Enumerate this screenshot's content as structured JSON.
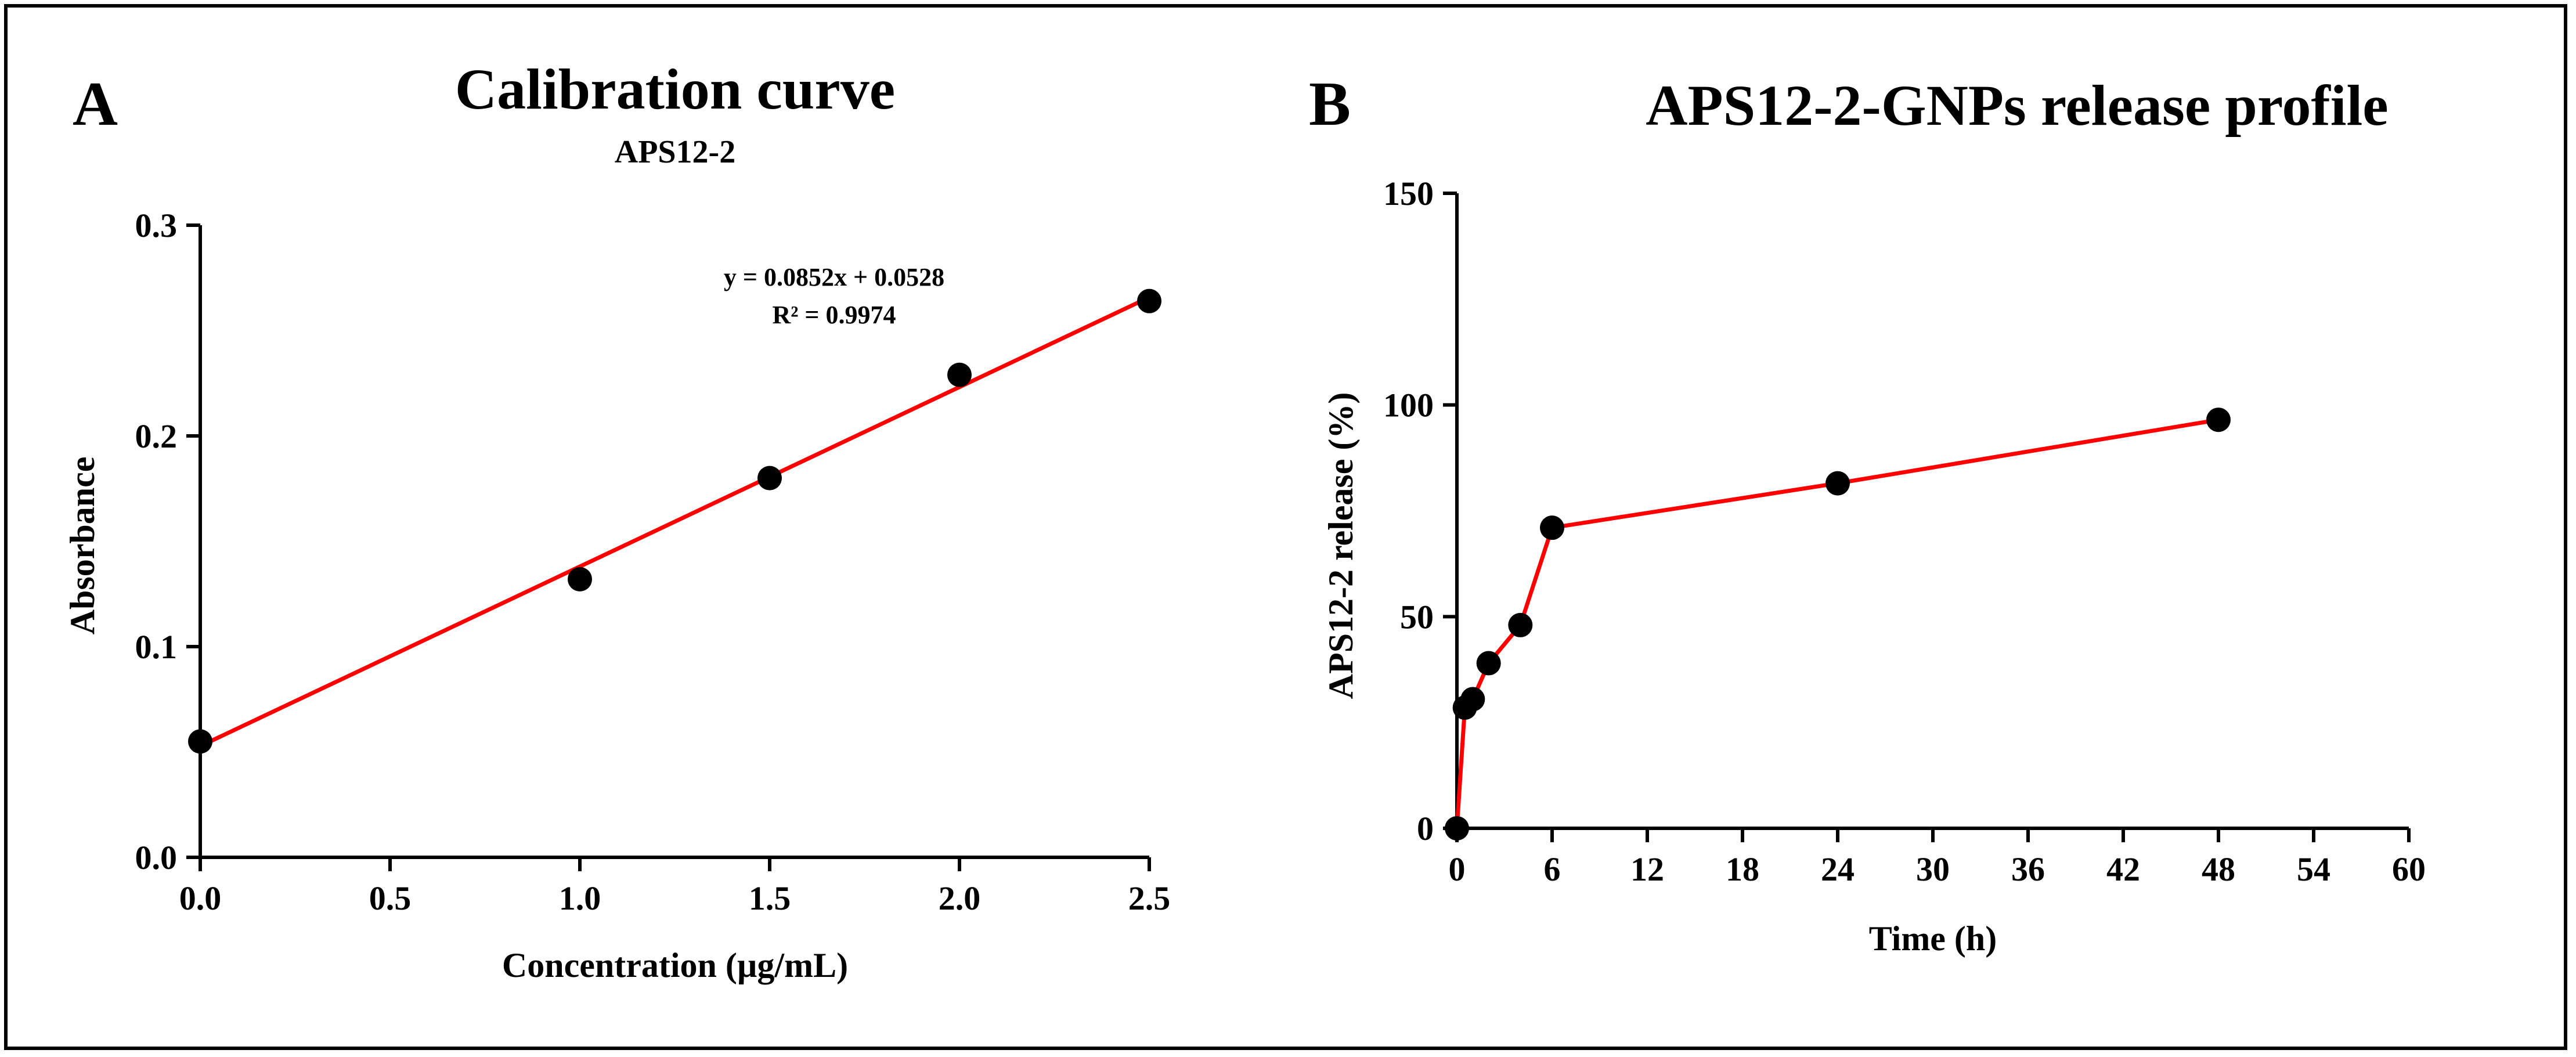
{
  "colors": {
    "fit_line": "#ff0000",
    "marker": "#000000",
    "axis": "#000000",
    "frame": "#000000"
  },
  "chart_data": [
    {
      "panel_letter": "A",
      "type": "scatter",
      "title": "Calibration curve",
      "subtitle": "APS12-2",
      "xlabel": "Concentration  (µg/mL)",
      "ylabel": "Absorbance",
      "xlim": [
        0,
        2.5
      ],
      "ylim": [
        0,
        0.3
      ],
      "xticks": [
        0,
        0.5,
        1.0,
        1.5,
        2.0,
        2.5
      ],
      "xtick_labels": [
        "0.0",
        "0.5",
        "1.0",
        "1.5",
        "2.0",
        "2.5"
      ],
      "yticks": [
        0,
        0.1,
        0.2,
        0.3
      ],
      "ytick_labels": [
        "0.0",
        "0.1",
        "0.2",
        "0.3"
      ],
      "series": [
        {
          "name": "APS12-2",
          "x": [
            0,
            1.0,
            1.5,
            2.0,
            2.5
          ],
          "y": [
            0.055,
            0.132,
            0.18,
            0.229,
            0.264
          ]
        }
      ],
      "fit": {
        "slope": 0.0852,
        "intercept": 0.0528,
        "x_range": [
          0,
          2.5
        ]
      },
      "annotations": [
        "y = 0.0852x  + 0.0528",
        "R² = 0.9974"
      ]
    },
    {
      "panel_letter": "B",
      "type": "line",
      "title": "APS12-2-GNPs release profile",
      "xlabel": "Time (h)",
      "ylabel": "APS12-2 release (%)",
      "xlim": [
        0,
        60
      ],
      "ylim": [
        0,
        150
      ],
      "xticks": [
        0,
        6,
        12,
        18,
        24,
        30,
        36,
        42,
        48,
        54,
        60
      ],
      "xtick_labels": [
        "0",
        "6",
        "12",
        "18",
        "24",
        "30",
        "36",
        "42",
        "48",
        "54",
        "60"
      ],
      "yticks": [
        0,
        50,
        100,
        150
      ],
      "ytick_labels": [
        "0",
        "50",
        "100",
        "150"
      ],
      "series": [
        {
          "name": "APS12-2-GNPs",
          "x": [
            0,
            0.5,
            1,
            2,
            4,
            6,
            24,
            48
          ],
          "y": [
            0,
            28.5,
            30.5,
            39,
            48,
            71,
            81.5,
            96.5
          ]
        }
      ]
    }
  ]
}
